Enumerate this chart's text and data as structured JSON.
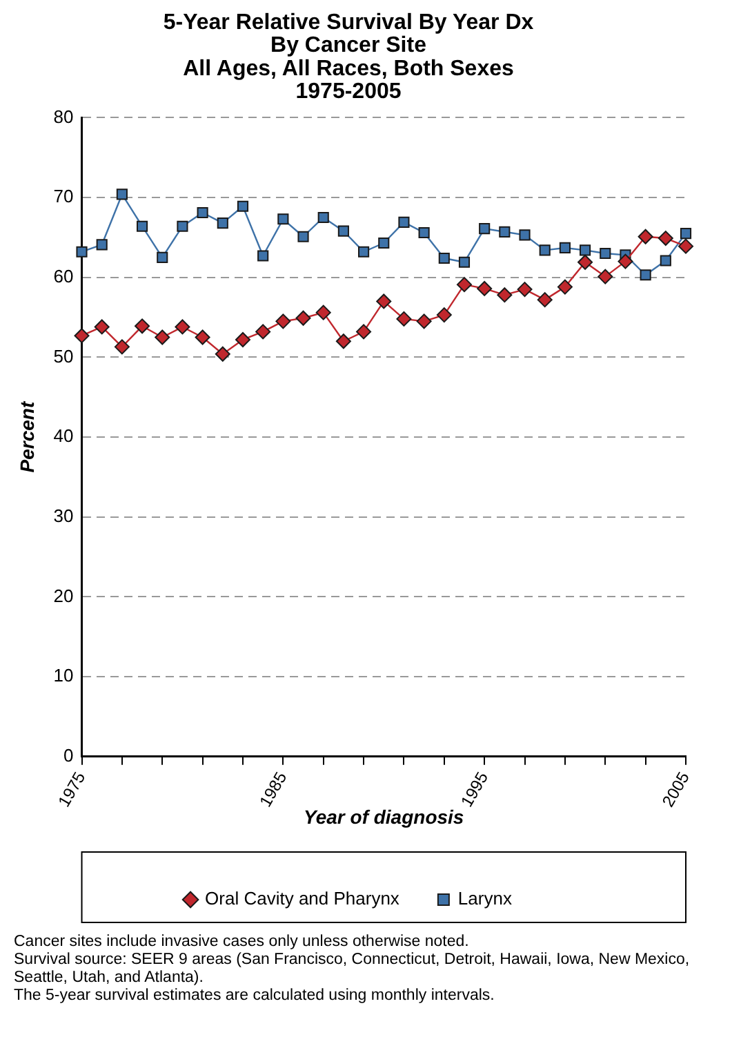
{
  "chart_data": {
    "type": "line",
    "title": "5-Year Relative Survival By Year Dx\nBy Cancer Site\nAll Ages, All Races, Both Sexes\n1975-2005",
    "xlabel": "Year of diagnosis",
    "ylabel": "Percent",
    "x": [
      1975,
      1976,
      1977,
      1978,
      1979,
      1980,
      1981,
      1982,
      1983,
      1984,
      1985,
      1986,
      1987,
      1988,
      1989,
      1990,
      1991,
      1992,
      1993,
      1994,
      1995,
      1996,
      1997,
      1998,
      1999,
      2000,
      2001,
      2002,
      2003,
      2004,
      2005
    ],
    "series": [
      {
        "name": "Oral Cavity and Pharynx",
        "color": "#c0272d",
        "marker": "diamond",
        "values": [
          52.7,
          53.8,
          51.3,
          53.9,
          52.5,
          53.8,
          52.5,
          50.4,
          52.2,
          53.2,
          54.5,
          54.9,
          55.6,
          52.0,
          53.2,
          57.0,
          54.8,
          54.5,
          55.3,
          59.1,
          58.6,
          57.8,
          58.5,
          57.2,
          58.8,
          61.9,
          60.1,
          62.0,
          65.1,
          64.9,
          63.9
        ]
      },
      {
        "name": "Larynx",
        "color": "#3e72a8",
        "marker": "square",
        "values": [
          63.2,
          64.1,
          70.4,
          66.4,
          62.5,
          66.4,
          68.1,
          66.8,
          68.9,
          62.7,
          67.3,
          65.1,
          67.5,
          65.8,
          63.2,
          64.3,
          66.9,
          65.6,
          62.4,
          61.9,
          66.1,
          65.7,
          65.3,
          63.4,
          63.7,
          63.4,
          63.0,
          62.8,
          60.3,
          62.1,
          65.5
        ]
      }
    ],
    "xlim": [
      1975,
      2005
    ],
    "xticks": [
      1975,
      {
        "value": 1977,
        "label": null
      },
      {
        "value": 1979,
        "label": null
      },
      {
        "value": 1981,
        "label": null
      },
      {
        "value": 1983,
        "label": null
      },
      1985,
      {
        "value": 1987,
        "label": null
      },
      {
        "value": 1989,
        "label": null
      },
      {
        "value": 1991,
        "label": null
      },
      {
        "value": 1993,
        "label": null
      },
      1995,
      {
        "value": 1997,
        "label": null
      },
      {
        "value": 1999,
        "label": null
      },
      {
        "value": 2001,
        "label": null
      },
      {
        "value": 2003,
        "label": null
      },
      2005
    ],
    "ylim": [
      0,
      80
    ],
    "yticks": [
      0,
      10,
      20,
      30,
      40,
      50,
      60,
      70,
      80
    ],
    "grid": "y",
    "legend": "bottom",
    "line_style": "solid",
    "annotations": [
      "Cancer sites include invasive cases only unless otherwise noted.",
      "Survival source: SEER 9 areas (San Francisco, Connecticut, Detroit, Hawaii, Iowa, New Mexico, Seattle, Utah, and Atlanta).",
      "The 5-year survival estimates are calculated using monthly intervals."
    ]
  }
}
